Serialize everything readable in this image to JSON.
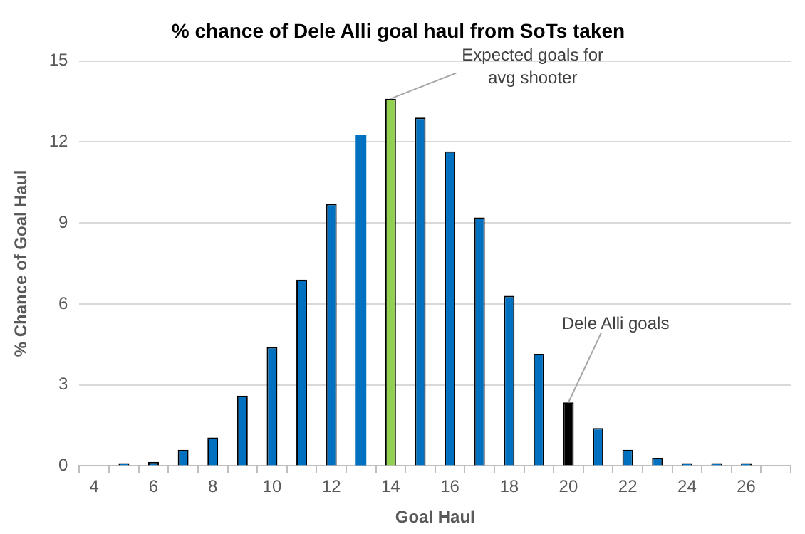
{
  "chart_data": {
    "type": "bar",
    "title": "% chance of Dele Alli goal haul from SoTs taken",
    "xlabel": "Goal Haul",
    "ylabel": "% Chance of Goal Haul",
    "categories": [
      "4",
      null,
      "6",
      null,
      "8",
      null,
      "10",
      null,
      "12",
      null,
      "14",
      null,
      "16",
      null,
      "18",
      null,
      "20",
      null,
      "22",
      null,
      "24",
      null,
      "26",
      null
    ],
    "values": [
      0,
      0.1,
      0.15,
      0.6,
      1.05,
      2.6,
      4.4,
      6.9,
      9.7,
      12.25,
      13.6,
      12.9,
      11.65,
      9.2,
      6.3,
      4.15,
      2.35,
      1.4,
      0.6,
      0.3,
      0.1,
      0.1,
      0.1,
      0
    ],
    "colors": [
      "#0070c0",
      "#0070c0",
      "#0070c0",
      "#0070c0",
      "#0070c0",
      "#0070c0",
      "#0070c0",
      "#0070c0",
      "#0070c0",
      "#0070c0",
      "#92d050",
      "#0070c0",
      "#0070c0",
      "#0070c0",
      "#0070c0",
      "#0070c0",
      "#000000",
      "#0070c0",
      "#0070c0",
      "#0070c0",
      "#0070c0",
      "#0070c0",
      "#0070c0",
      "#0070c0"
    ],
    "ylim": [
      0,
      15
    ],
    "yticks": [
      0,
      3,
      6,
      9,
      12,
      15
    ],
    "grid": "y",
    "legend": false,
    "annotations": [
      {
        "text": "Expected goals for avg shooter",
        "x": "14",
        "y": 13.6
      },
      {
        "text": "Dele Alli goals",
        "x": "20",
        "y": 2.35
      }
    ]
  }
}
